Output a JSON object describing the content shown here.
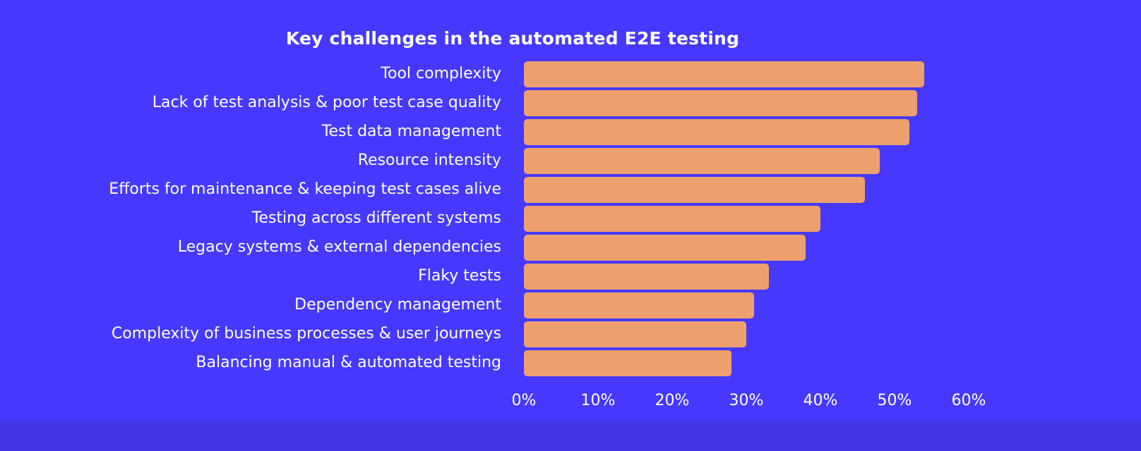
{
  "page": {
    "background_outer": "#4334e6",
    "background_card": "#4639fd",
    "text_color": "#ffffff"
  },
  "chart_data": {
    "type": "bar",
    "orientation": "horizontal",
    "title": "Key challenges in the automated E2E testing",
    "categories": [
      "Tool complexity",
      "Lack of test analysis & poor test case quality",
      "Test data management",
      "Resource intensity",
      "Efforts for maintenance & keeping test cases alive",
      "Testing across different systems",
      "Legacy systems & external dependencies",
      "Flaky tests",
      "Dependency management",
      "Complexity of business processes & user journeys",
      "Balancing manual & automated testing"
    ],
    "values": [
      54,
      53,
      52,
      48,
      46,
      40,
      38,
      33,
      31,
      30,
      28
    ],
    "unit": "%",
    "xlabel": "",
    "ylabel": "",
    "xlim": [
      0,
      60
    ],
    "x_ticks": [
      "0%",
      "10%",
      "20%",
      "30%",
      "40%",
      "50%",
      "60%"
    ],
    "grid": false,
    "legend": false,
    "bar_color": "#eda06e",
    "text_color": "#ffffff"
  }
}
